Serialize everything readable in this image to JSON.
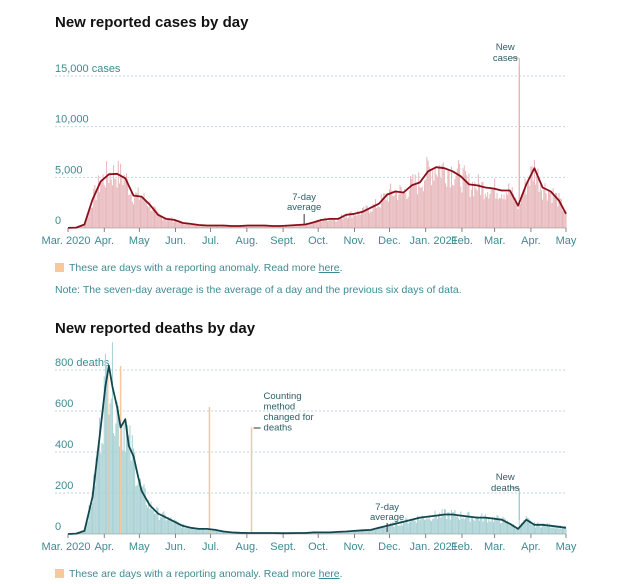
{
  "chart_data": [
    {
      "type": "bar",
      "title": "New reported cases by day",
      "xlabel": "",
      "ylabel": "",
      "ylim": [
        0,
        15000
      ],
      "yticks": [
        {
          "value": 0,
          "label": "0"
        },
        {
          "value": 5000,
          "label": "5,000"
        },
        {
          "value": 10000,
          "label": "10,000"
        },
        {
          "value": 15000,
          "label": "15,000 cases"
        }
      ],
      "xticks": [
        "Mar. 2020",
        "Apr.",
        "May",
        "Jun.",
        "Jul.",
        "Aug.",
        "Sept.",
        "Oct.",
        "Nov.",
        "Dec.",
        "Jan. 2021",
        "Feb.",
        "Mar.",
        "Apr.",
        "May"
      ],
      "grid": true,
      "series": [
        {
          "name": "7-day average",
          "color": "#8b0f1b",
          "x_days": [
            0,
            7,
            14,
            21,
            28,
            35,
            42,
            49,
            56,
            63,
            70,
            77,
            84,
            91,
            98,
            105,
            112,
            119,
            126,
            133,
            140,
            147,
            154,
            161,
            168,
            175,
            182,
            189,
            196,
            203,
            210,
            217,
            224,
            231,
            238,
            245,
            252,
            259,
            266,
            273,
            280,
            287,
            294,
            301,
            308,
            315,
            322,
            329,
            336,
            343,
            350,
            357,
            364,
            371,
            378,
            385,
            392,
            399,
            406,
            413,
            420,
            426
          ],
          "values": [
            10,
            40,
            350,
            2800,
            4600,
            5300,
            5350,
            4900,
            3200,
            3100,
            2300,
            1300,
            900,
            800,
            500,
            400,
            300,
            250,
            250,
            250,
            200,
            200,
            250,
            250,
            250,
            200,
            200,
            250,
            300,
            350,
            550,
            800,
            900,
            900,
            1300,
            1400,
            1600,
            2000,
            2400,
            3300,
            3600,
            3500,
            4200,
            4500,
            5600,
            6000,
            5900,
            5600,
            5100,
            4300,
            4200,
            4000,
            3900,
            3700,
            3700,
            2200,
            4300,
            5900,
            4000,
            3600,
            2700,
            1400
          ]
        },
        {
          "name": "New cases",
          "color": "#e8b9bd",
          "note": "daily bars, noisy around the 7-day average; spike to ~16,000 on one day in late Mar. 2021"
        }
      ],
      "anomaly_days": [],
      "annotations": [
        {
          "text": [
            "New",
            "cases"
          ],
          "near": "late Mar. 2021 spike"
        },
        {
          "text": [
            "7-day",
            "average"
          ],
          "near": "late Sept. 2020"
        }
      ]
    },
    {
      "type": "bar",
      "title": "New reported deaths by day",
      "xlabel": "",
      "ylabel": "",
      "ylim": [
        0,
        800
      ],
      "yticks": [
        {
          "value": 0,
          "label": "0"
        },
        {
          "value": 200,
          "label": "200"
        },
        {
          "value": 400,
          "label": "400"
        },
        {
          "value": 600,
          "label": "600"
        },
        {
          "value": 800,
          "label": "800 deaths"
        }
      ],
      "xticks": [
        "Mar. 2020",
        "Apr.",
        "May",
        "Jun.",
        "Jul.",
        "Aug.",
        "Sept.",
        "Oct.",
        "Nov.",
        "Dec.",
        "Jan. 2021",
        "Feb.",
        "Mar.",
        "Apr.",
        "May"
      ],
      "grid": true,
      "series": [
        {
          "name": "7-day average",
          "color": "#12474f",
          "x_days": [
            0,
            7,
            14,
            21,
            28,
            32,
            35,
            38,
            42,
            45,
            49,
            52,
            56,
            60,
            63,
            70,
            77,
            84,
            91,
            98,
            105,
            112,
            119,
            126,
            133,
            140,
            147,
            154,
            161,
            168,
            175,
            182,
            189,
            196,
            203,
            210,
            217,
            224,
            231,
            238,
            245,
            252,
            259,
            266,
            273,
            280,
            287,
            294,
            301,
            308,
            315,
            322,
            329,
            336,
            343,
            350,
            357,
            364,
            371,
            378,
            385,
            392,
            399,
            406,
            413,
            420,
            426
          ],
          "values": [
            0,
            2,
            15,
            180,
            520,
            720,
            820,
            720,
            620,
            520,
            560,
            430,
            380,
            280,
            210,
            140,
            100,
            80,
            60,
            40,
            30,
            25,
            25,
            20,
            12,
            8,
            6,
            5,
            5,
            5,
            5,
            4,
            4,
            5,
            5,
            8,
            8,
            8,
            10,
            12,
            15,
            18,
            20,
            30,
            40,
            50,
            60,
            70,
            80,
            85,
            90,
            95,
            95,
            90,
            85,
            80,
            80,
            75,
            70,
            50,
            25,
            70,
            45,
            45,
            40,
            35,
            30
          ],
          "note": "peak ~830 in mid Apr. 2020"
        },
        {
          "name": "New deaths",
          "color": "#a9d3d6"
        }
      ],
      "anomaly_days": [
        {
          "day": 34,
          "value": 800
        },
        {
          "day": 45,
          "value": 820
        },
        {
          "day": 121,
          "value": 620
        },
        {
          "day": 157,
          "value": 520
        }
      ],
      "annotations": [
        {
          "text": [
            "Counting",
            "method",
            "changed for",
            "deaths"
          ],
          "near": "early Aug. 2020"
        },
        {
          "text": [
            "New",
            "deaths"
          ],
          "near": "late Mar. 2021"
        },
        {
          "text": [
            "7-day",
            "average"
          ],
          "near": "late Nov. 2020"
        }
      ]
    }
  ],
  "cases": {
    "title": "New reported cases by day",
    "legend_text": "These are days with a reporting anomaly. Read more ",
    "legend_link": "here",
    "legend_end": ".",
    "note": "Note: The seven-day average is the average of a day and the previous six days of data.",
    "anno_new": [
      "New",
      "cases"
    ],
    "anno_avg": [
      "7-day",
      "average"
    ]
  },
  "deaths": {
    "title": "New reported deaths by day",
    "legend_text": "These are days with a reporting anomaly. Read more ",
    "legend_link": "here",
    "legend_end": ".",
    "anno_method": [
      "Counting",
      "method",
      "changed for",
      "deaths"
    ],
    "anno_new": [
      "New",
      "deaths"
    ],
    "anno_avg": [
      "7-day",
      "average"
    ]
  },
  "colors": {
    "case_bar": "#e6b6ba",
    "case_line": "#8b0f1b",
    "death_bar": "#a6d0d3",
    "death_line": "#12474f",
    "anomaly": "#f8c89c",
    "axis_text": "#3f8a92",
    "grid": "#bfd9dc"
  }
}
